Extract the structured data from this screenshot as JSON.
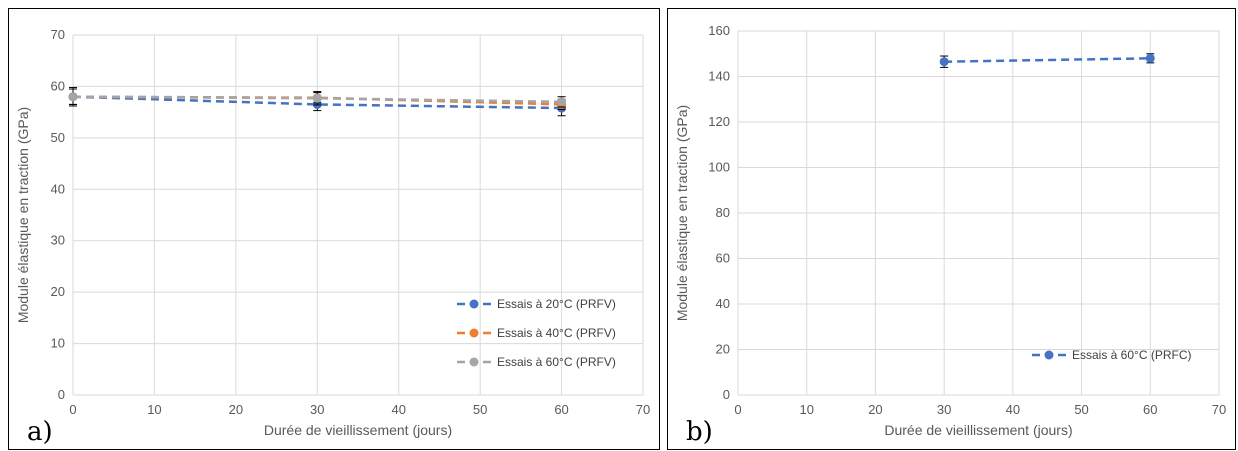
{
  "chart_data": [
    {
      "panel_label": "a)",
      "type": "line",
      "xlabel": "Durée de vieillissement (jours)",
      "ylabel": "Module élastique en traction (GPa)",
      "xlim": [
        0,
        70
      ],
      "ylim": [
        0,
        70
      ],
      "xticks": [
        "0",
        "10",
        "20",
        "30",
        "40",
        "50",
        "60",
        "70"
      ],
      "yticks": [
        "0",
        "10",
        "20",
        "30",
        "40",
        "50",
        "60",
        "70"
      ],
      "grid": true,
      "legend_position": "bottom-right",
      "series": [
        {
          "name": "Essais à 20°C (PRFV)",
          "color": "#4472C4",
          "x": [
            0,
            30,
            60
          ],
          "y": [
            58,
            56.5,
            55.8
          ],
          "err": [
            1.5,
            1.2,
            1.5
          ]
        },
        {
          "name": "Essais à 40°C (PRFV)",
          "color": "#ED7D31",
          "x": [
            0,
            30,
            60
          ],
          "y": [
            58,
            57.8,
            56.5
          ],
          "err": [
            1.5,
            1.0,
            1.0
          ]
        },
        {
          "name": "Essais à 60°C (PRFV)",
          "color": "#A5A5A5",
          "x": [
            0,
            30,
            60
          ],
          "y": [
            58,
            57.7,
            57.0
          ],
          "err": [
            1.8,
            1.3,
            1.0
          ]
        }
      ]
    },
    {
      "panel_label": "b)",
      "type": "line",
      "xlabel": "Durée de vieillissement (jours)",
      "ylabel": "Module élastique  en traction (GPa)",
      "xlim": [
        0,
        70
      ],
      "ylim": [
        0,
        160
      ],
      "xticks": [
        "0",
        "10",
        "20",
        "30",
        "40",
        "50",
        "60",
        "70"
      ],
      "yticks": [
        "0",
        "20",
        "40",
        "60",
        "80",
        "100",
        "120",
        "140",
        "160"
      ],
      "grid": true,
      "legend_position": "bottom-right",
      "series": [
        {
          "name": "Essais à 60°C (PRFC)",
          "color": "#4472C4",
          "x": [
            30,
            60
          ],
          "y": [
            146.5,
            148
          ],
          "err": [
            2.5,
            2
          ]
        }
      ]
    }
  ]
}
